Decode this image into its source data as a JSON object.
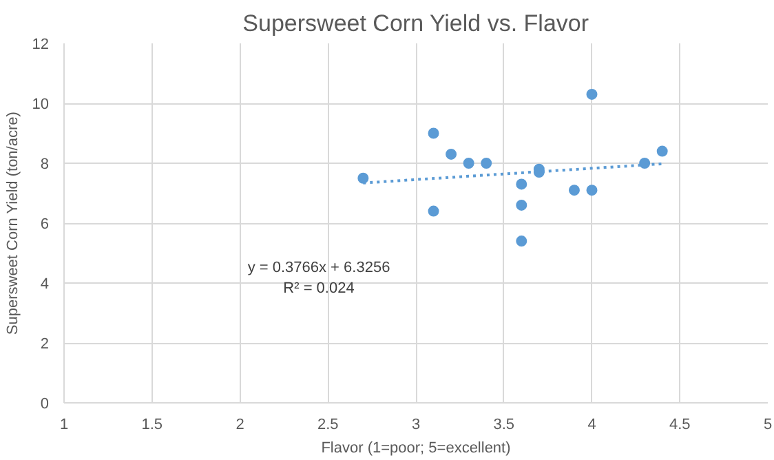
{
  "chart_data": {
    "type": "scatter",
    "title": "Supersweet Corn Yield vs. Flavor",
    "xlabel": "Flavor (1=poor; 5=excellent)",
    "ylabel": "Supersweet Corn Yield (ton/acre)",
    "xlim": [
      1,
      5
    ],
    "ylim": [
      0,
      12
    ],
    "xticks": [
      1,
      1.5,
      2,
      2.5,
      3,
      3.5,
      4,
      4.5,
      5
    ],
    "yticks": [
      0,
      2,
      4,
      6,
      8,
      10,
      12
    ],
    "grid": true,
    "annotations": [
      "y = 0.3766x + 6.3256",
      "R² = 0.024"
    ],
    "series": [
      {
        "marker": "circle",
        "color": "#5b9bd5",
        "x": [
          2.7,
          3.1,
          3.1,
          3.2,
          3.3,
          3.4,
          3.6,
          3.6,
          3.6,
          3.7,
          3.7,
          3.9,
          4.0,
          4.0,
          4.3,
          4.4
        ],
        "values": [
          7.5,
          9.0,
          6.4,
          8.3,
          8.0,
          8.0,
          7.3,
          6.6,
          5.4,
          7.8,
          7.7,
          7.1,
          7.1,
          10.3,
          8.0,
          8.4
        ]
      },
      {
        "type": "line",
        "color": "#5b9bd5",
        "line_style": "dotted",
        "x": [
          2.7,
          4.4
        ],
        "values": [
          7.34,
          7.98
        ]
      }
    ]
  }
}
